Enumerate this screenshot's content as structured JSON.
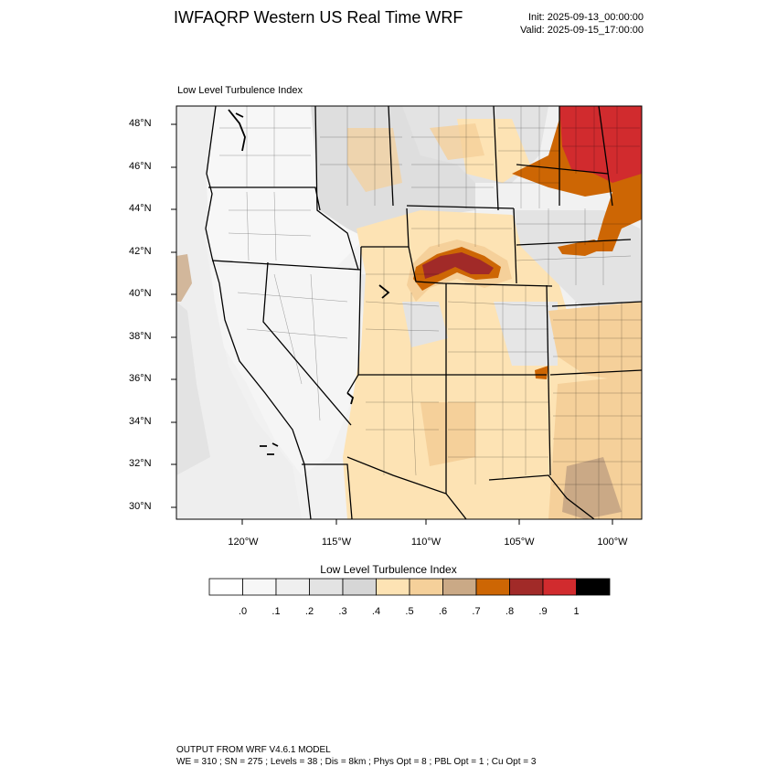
{
  "header": {
    "title": "IWFAQRP Western US Real Time WRF",
    "init": "Init: 2025-09-13_00:00:00",
    "valid": "Valid: 2025-09-15_17:00:00"
  },
  "map": {
    "label": "Low Level Turbulence Index",
    "lat_labels": [
      "48°N",
      "46°N",
      "44°N",
      "42°N",
      "40°N",
      "38°N",
      "36°N",
      "34°N",
      "32°N",
      "30°N"
    ],
    "lon_labels": [
      "120°W",
      "115°W",
      "110°W",
      "105°W",
      "100°W"
    ]
  },
  "colorbar": {
    "title": "Low Level Turbulence Index",
    "ticks": [
      ".0",
      ".1",
      ".2",
      ".3",
      ".4",
      ".5",
      ".6",
      ".7",
      ".8",
      ".9",
      "1"
    ],
    "colors": [
      "#ffffff",
      "#f7f7f7",
      "#efefef",
      "#e3e3e3",
      "#d6d6d6",
      "#fde3b4",
      "#f5d09a",
      "#caa986",
      "#cd6604",
      "#a12a28",
      "#d12b2e",
      "#000000"
    ]
  },
  "footer": {
    "line1": "OUTPUT FROM WRF V4.6.1 MODEL",
    "line2": "WE = 310 ; SN = 275 ; Levels = 38 ; Dis = 8km ; Phys Opt = 8 ; PBL Opt = 1 ; Cu Opt = 3"
  }
}
